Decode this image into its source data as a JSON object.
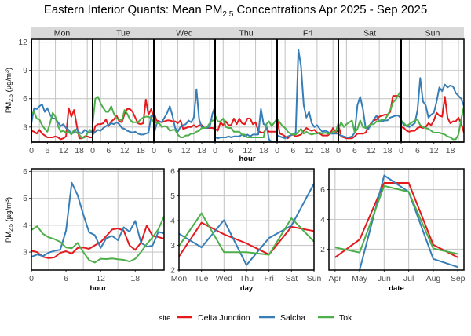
{
  "title": {
    "main": "Eastern Interior Quants: Mean PM",
    "sub": "2.5",
    "rest": " Concentrations Apr 2025 - Sep 2025"
  },
  "colors": {
    "Delta Junction": "#e41a1c",
    "Salcha": "#377eb8",
    "Tok": "#4daf4a"
  },
  "legend": {
    "title": "site",
    "entries": [
      "Delta Junction",
      "Salcha",
      "Tok"
    ]
  },
  "chart_data": [
    {
      "type": "line",
      "name": "hour by weekday",
      "facets": [
        "Mon",
        "Tue",
        "Wed",
        "Thu",
        "Fri",
        "Sat",
        "Sun"
      ],
      "xlabel": "hour",
      "ylabel": "PM2.5 (µg/m³)",
      "xticks": [
        0,
        6,
        12,
        18
      ],
      "yticks": [
        3,
        6,
        9,
        12
      ],
      "ylim": [
        1.4,
        12.3
      ],
      "x": [
        0,
        1,
        2,
        3,
        4,
        5,
        6,
        7,
        8,
        9,
        10,
        11,
        12,
        13,
        14,
        15,
        16,
        17,
        18,
        19,
        20,
        21,
        22,
        23
      ],
      "series": [
        {
          "name": "Delta Junction",
          "values": {
            "Mon": [
              2.6,
              2.5,
              2.3,
              2.7,
              2.3,
              2.1,
              1.9,
              1.9,
              1.9,
              2.0,
              1.9,
              1.7,
              1.8,
              2.0,
              5.0,
              4.1,
              4.8,
              3.2,
              1.8,
              1.8,
              2.0,
              2.0,
              1.9,
              1.9
            ],
            "Tue": [
              2.1,
              3.1,
              3.3,
              3.3,
              3.4,
              3.8,
              3.1,
              3.6,
              3.8,
              4.2,
              3.6,
              3.5,
              4.4,
              4.9,
              4.9,
              4.6,
              4.0,
              3.4,
              3.3,
              3.4,
              5.9,
              4.3,
              4.9,
              3.9
            ],
            "Wed": [
              4.6,
              3.7,
              3.6,
              3.5,
              3.6,
              3.7,
              3.7,
              3.6,
              3.6,
              3.4,
              3.7,
              2.8,
              2.9,
              3.0,
              3.0,
              3.2,
              3.0,
              3.2,
              3.2,
              2.9,
              2.9,
              2.9,
              2.9,
              2.8
            ],
            "Thu": [
              2.8,
              2.6,
              3.5,
              3.2,
              3.6,
              3.2,
              3.2,
              3.9,
              3.3,
              3.9,
              3.4,
              3.3,
              3.9,
              3.9,
              3.3,
              3.5,
              2.6,
              2.4,
              2.4,
              2.8,
              2.5,
              2.5,
              2.5,
              2.5
            ],
            "Fri": [
              3.9,
              2.3,
              2.2,
              2.0,
              1.8,
              2.1,
              2.2,
              2.0,
              2.1,
              2.2,
              2.6,
              2.9,
              2.7,
              2.6,
              2.7,
              2.4,
              2.3,
              2.1,
              2.1,
              2.1,
              2.3,
              2.9,
              2.4,
              2.7
            ],
            "Sat": [
              3.3,
              2.0,
              1.9,
              1.8,
              1.8,
              1.8,
              2.0,
              2.3,
              2.3,
              2.3,
              2.4,
              3.0,
              3.4,
              3.7,
              3.8,
              4.1,
              4.2,
              4.3,
              4.3,
              4.6,
              6.3,
              6.3,
              6.3,
              6.0
            ],
            "Sun": [
              3.0,
              2.9,
              2.6,
              2.5,
              2.6,
              2.6,
              2.9,
              3.0,
              2.9,
              3.0,
              3.4,
              3.2,
              3.7,
              4.5,
              4.2,
              4.1,
              6.2,
              4.0,
              3.4,
              3.6,
              3.6,
              4.0,
              3.4,
              2.4
            ]
          }
        },
        {
          "name": "Salcha",
          "values": {
            "Mon": [
              3.4,
              5.0,
              4.9,
              5.2,
              5.4,
              4.6,
              5.0,
              4.3,
              3.9,
              3.9,
              3.5,
              3.1,
              3.3,
              2.9,
              2.7,
              2.3,
              2.4,
              2.8,
              2.4,
              2.3,
              2.7,
              2.5,
              2.4,
              2.6
            ],
            "Tue": [
              2.2,
              2.5,
              2.7,
              2.6,
              2.9,
              3.1,
              3.2,
              3.4,
              3.3,
              3.5,
              3.3,
              2.9,
              2.8,
              2.6,
              2.5,
              2.4,
              2.5,
              2.3,
              2.2,
              2.2,
              2.3,
              2.4,
              4.2,
              4.1
            ],
            "Wed": [
              2.2,
              3.3,
              3.6,
              3.5,
              4.0,
              4.5,
              5.2,
              4.2,
              2.9,
              2.5,
              3.0,
              3.2,
              3.3,
              3.7,
              3.5,
              4.0,
              7.0,
              3.8,
              3.0,
              2.9,
              2.9,
              3.0,
              4.4,
              5.2
            ],
            "Thu": [
              1.9,
              1.8,
              1.9,
              1.9,
              1.9,
              2.0,
              1.9,
              2.0,
              2.0,
              2.0,
              2.2,
              2.0,
              2.2,
              2.0,
              2.2,
              2.2,
              2.2,
              4.9,
              3.3,
              3.2,
              1.7,
              1.4,
              1.4,
              1.5
            ],
            "Fri": [
              2.1,
              2.0,
              1.9,
              1.8,
              2.0,
              2.1,
              2.2,
              2.4,
              11.2,
              9.4,
              5.3,
              4.0,
              4.6,
              3.4,
              3.0,
              3.2,
              2.8,
              2.5,
              2.6,
              2.5,
              2.3,
              2.3,
              2.3,
              2.3
            ],
            "Sat": [
              2.2,
              2.1,
              2.0,
              1.9,
              1.9,
              2.0,
              2.4,
              5.3,
              6.2,
              4.9,
              2.9,
              2.8,
              3.3,
              3.8,
              4.2,
              3.6,
              3.6,
              3.7,
              3.7,
              4.0,
              4.1,
              4.2,
              4.2,
              3.9
            ],
            "Sun": [
              3.7,
              3.2,
              3.1,
              3.0,
              3.2,
              3.4,
              4.8,
              8.2,
              5.7,
              5.3,
              4.0,
              4.3,
              4.5,
              5.7,
              7.2,
              6.8,
              7.5,
              7.2,
              7.4,
              7.3,
              6.6,
              6.3,
              6.0,
              5.2
            ]
          }
        },
        {
          "name": "Tok",
          "values": {
            "Mon": [
              4.4,
              4.6,
              3.9,
              3.8,
              3.2,
              2.8,
              2.5,
              3.4,
              4.5,
              4.1,
              3.1,
              2.5,
              2.6,
              2.4,
              2.5,
              2.2,
              2.7,
              2.4,
              2.2,
              1.8,
              1.9,
              2.3,
              2.7,
              2.6
            ],
            "Tue": [
              3.3,
              6.0,
              6.2,
              5.5,
              5.0,
              4.6,
              4.6,
              5.2,
              4.4,
              3.9,
              3.8,
              3.7,
              4.8,
              4.4,
              3.8,
              3.5,
              3.5,
              3.5,
              3.8,
              4.0,
              4.1,
              4.1,
              3.9,
              3.5
            ],
            "Wed": [
              3.9,
              3.4,
              3.4,
              3.0,
              3.1,
              3.0,
              2.6,
              2.7,
              2.7,
              2.2,
              1.9,
              1.9,
              2.1,
              2.1,
              2.3,
              2.3,
              2.5,
              2.6,
              2.9,
              2.9,
              3.0,
              3.4,
              3.7,
              3.7
            ],
            "Thu": [
              4.2,
              3.6,
              3.6,
              3.9,
              3.0,
              2.9,
              2.9,
              2.5,
              2.5,
              2.5,
              2.2,
              2.2,
              1.9,
              1.9,
              1.9,
              1.9,
              1.9,
              1.9,
              1.9,
              3.3,
              3.6,
              3.1,
              3.5,
              3.9
            ],
            "Fri": [
              3.9,
              3.5,
              3.1,
              2.9,
              2.5,
              2.3,
              2.2,
              2.2,
              2.5,
              2.8,
              2.3,
              2.5,
              2.3,
              2.2,
              2.3,
              2.3,
              2.4,
              2.3,
              2.4,
              2.3,
              2.3,
              2.5,
              2.5,
              3.4
            ],
            "Sat": [
              2.8,
              3.5,
              3.0,
              3.3,
              3.5,
              3.7,
              2.4,
              2.8,
              3.7,
              3.0,
              2.9,
              3.1,
              3.3,
              3.3,
              3.6,
              3.6,
              3.8,
              3.8,
              4.2,
              4.8,
              5.6,
              5.9,
              6.4,
              6.9
            ],
            "Sun": [
              3.7,
              3.4,
              3.1,
              3.3,
              3.5,
              3.7,
              3.8,
              3.2,
              3.0,
              2.9,
              2.8,
              2.6,
              2.4,
              2.4,
              2.4,
              2.3,
              2.2,
              2.0,
              1.9,
              1.7,
              1.7,
              2.2,
              3.8,
              5.2
            ]
          }
        }
      ]
    },
    {
      "type": "line",
      "name": "hour",
      "xlabel": "hour",
      "ylabel": "PM2.5 (µg/m³)",
      "xticks": [
        0,
        6,
        12,
        18
      ],
      "yticks": [
        3,
        4,
        5,
        6
      ],
      "ylim": [
        2.33,
        6.1
      ],
      "x": [
        0,
        1,
        2,
        3,
        4,
        5,
        6,
        7,
        8,
        9,
        10,
        11,
        12,
        13,
        14,
        15,
        16,
        17,
        18,
        19,
        20,
        21,
        22,
        23
      ],
      "series": [
        {
          "name": "Delta Junction",
          "values": [
            3.05,
            3.0,
            2.82,
            2.77,
            2.8,
            2.97,
            3.03,
            2.94,
            3.15,
            3.17,
            3.12,
            3.25,
            3.37,
            3.6,
            3.84,
            3.88,
            3.8,
            3.25,
            3.08,
            3.35,
            3.99,
            3.6,
            3.56,
            3.5
          ]
        },
        {
          "name": "Salcha",
          "values": [
            2.82,
            2.91,
            2.85,
            2.98,
            3.05,
            3.08,
            3.8,
            5.58,
            5.12,
            4.4,
            3.74,
            3.63,
            3.15,
            3.52,
            3.6,
            3.44,
            3.92,
            3.76,
            4.16,
            3.35,
            3.2,
            3.24,
            3.75,
            3.7
          ]
        },
        {
          "name": "Tok",
          "values": [
            3.82,
            3.96,
            3.68,
            3.55,
            3.48,
            3.38,
            3.17,
            3.14,
            3.34,
            3.0,
            2.7,
            2.61,
            2.75,
            2.74,
            2.76,
            2.73,
            2.71,
            2.65,
            2.75,
            3.0,
            3.3,
            3.55,
            3.85,
            4.33
          ]
        }
      ]
    },
    {
      "type": "line",
      "name": "day",
      "xlabel": "day",
      "categories": [
        "Mon",
        "Tue",
        "Wed",
        "Thu",
        "Fri",
        "Sat",
        "Sun"
      ],
      "yticks": [
        2,
        3,
        4,
        5,
        6
      ],
      "ylim": [
        2,
        6.1
      ],
      "series": [
        {
          "name": "Delta Junction",
          "values": [
            2.55,
            3.92,
            3.45,
            3.08,
            2.63,
            3.75,
            3.58
          ]
        },
        {
          "name": "Salcha",
          "values": [
            3.47,
            2.92,
            4.02,
            2.2,
            3.3,
            3.8,
            5.5
          ]
        },
        {
          "name": "Tok",
          "values": [
            2.97,
            4.3,
            2.72,
            2.72,
            2.62,
            4.1,
            3.15
          ]
        }
      ]
    },
    {
      "type": "line",
      "name": "date",
      "xlabel": "date",
      "categories": [
        "Apr",
        "May",
        "Jun",
        "Jul",
        "Aug",
        "Sep"
      ],
      "yticks": [
        2,
        4,
        6
      ],
      "ylim": [
        0.6,
        7.4
      ],
      "series": [
        {
          "name": "Delta Junction",
          "values": [
            1.45,
            2.65,
            6.45,
            6.45,
            2.3,
            1.45
          ]
        },
        {
          "name": "Salcha",
          "values": [
            null,
            0.6,
            6.95,
            5.85,
            1.35,
            0.8
          ]
        },
        {
          "name": "Tok",
          "values": [
            2.12,
            1.78,
            6.25,
            5.85,
            2.05,
            1.68
          ]
        }
      ]
    }
  ]
}
